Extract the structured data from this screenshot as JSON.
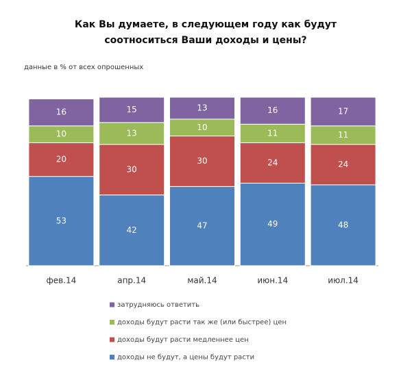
{
  "chart_data": {
    "type": "stacked_bar",
    "title": [
      "Как Вы думаете, в следующем году как будут",
      "соотноситься Ваши доходы и цены?"
    ],
    "subtitle": "данные в % от всех опрошенных",
    "categories": [
      "фев.14",
      "апр.14",
      "май.14",
      "июн.14",
      "июл.14"
    ],
    "series": [
      {
        "name": "доходы не будут, а цены будут расти",
        "color": "#4f81bd",
        "values": [
          53,
          42,
          47,
          49,
          48
        ]
      },
      {
        "name": "доходы будут расти медленнее цен",
        "color": "#c0504d",
        "values": [
          20,
          30,
          30,
          24,
          24
        ]
      },
      {
        "name": "доходы будут расти так же (или быстрее) цен",
        "color": "#9bbb59",
        "values": [
          10,
          13,
          10,
          11,
          11
        ]
      },
      {
        "name": "затрудняюсь ответить",
        "color": "#8064a2",
        "values": [
          16,
          15,
          13,
          16,
          17
        ]
      }
    ]
  }
}
